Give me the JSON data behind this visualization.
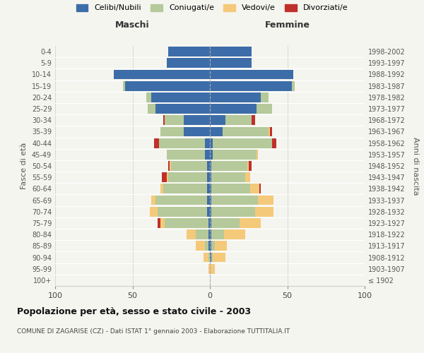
{
  "age_groups": [
    "100+",
    "95-99",
    "90-94",
    "85-89",
    "80-84",
    "75-79",
    "70-74",
    "65-69",
    "60-64",
    "55-59",
    "50-54",
    "45-49",
    "40-44",
    "35-39",
    "30-34",
    "25-29",
    "20-24",
    "15-19",
    "10-14",
    "5-9",
    "0-4"
  ],
  "birth_years": [
    "≤ 1902",
    "1903-1907",
    "1908-1912",
    "1913-1917",
    "1918-1922",
    "1923-1927",
    "1928-1932",
    "1933-1937",
    "1938-1942",
    "1943-1947",
    "1948-1952",
    "1953-1957",
    "1958-1962",
    "1963-1967",
    "1968-1972",
    "1973-1977",
    "1978-1982",
    "1983-1987",
    "1988-1992",
    "1993-1997",
    "1998-2002"
  ],
  "males": {
    "celibi": [
      0,
      0,
      0,
      1,
      1,
      1,
      2,
      2,
      2,
      2,
      2,
      3,
      3,
      17,
      17,
      35,
      38,
      55,
      62,
      28,
      27
    ],
    "coniugati": [
      0,
      0,
      1,
      2,
      8,
      28,
      32,
      33,
      28,
      25,
      23,
      25,
      30,
      15,
      12,
      5,
      3,
      1,
      0,
      0,
      0
    ],
    "vedovi": [
      0,
      1,
      3,
      6,
      6,
      3,
      5,
      3,
      2,
      1,
      1,
      0,
      0,
      0,
      0,
      0,
      0,
      0,
      0,
      0,
      0
    ],
    "divorziati": [
      0,
      0,
      0,
      0,
      0,
      2,
      0,
      0,
      0,
      3,
      1,
      0,
      3,
      0,
      1,
      0,
      0,
      0,
      0,
      0,
      0
    ]
  },
  "females": {
    "nubili": [
      0,
      0,
      1,
      1,
      1,
      1,
      1,
      1,
      1,
      1,
      1,
      2,
      2,
      8,
      10,
      30,
      33,
      53,
      54,
      27,
      27
    ],
    "coniugate": [
      0,
      0,
      1,
      2,
      8,
      18,
      28,
      30,
      25,
      22,
      23,
      28,
      38,
      30,
      17,
      10,
      5,
      2,
      0,
      0,
      0
    ],
    "vedove": [
      0,
      3,
      8,
      8,
      14,
      14,
      12,
      10,
      6,
      3,
      1,
      1,
      0,
      1,
      0,
      0,
      0,
      0,
      0,
      0,
      0
    ],
    "divorziate": [
      0,
      0,
      0,
      0,
      0,
      0,
      0,
      0,
      1,
      0,
      2,
      0,
      3,
      1,
      2,
      0,
      0,
      0,
      0,
      0,
      0
    ]
  },
  "colors": {
    "celibi": "#3d6da8",
    "coniugati": "#b5c99a",
    "vedovi": "#f5c97a",
    "divorziati": "#c0302a"
  },
  "xlim": 100,
  "title": "Popolazione per età, sesso e stato civile - 2003",
  "subtitle": "COMUNE DI ZAGARISE (CZ) - Dati ISTAT 1° gennaio 2003 - Elaborazione TUTTITALIA.IT",
  "ylabel_left": "Fasce di età",
  "ylabel_right": "Anni di nascita",
  "xlabel_left": "Maschi",
  "xlabel_right": "Femmine",
  "legend_labels": [
    "Celibi/Nubili",
    "Coniugati/e",
    "Vedovi/e",
    "Divorziati/e"
  ],
  "bg_color": "#f5f5f0"
}
